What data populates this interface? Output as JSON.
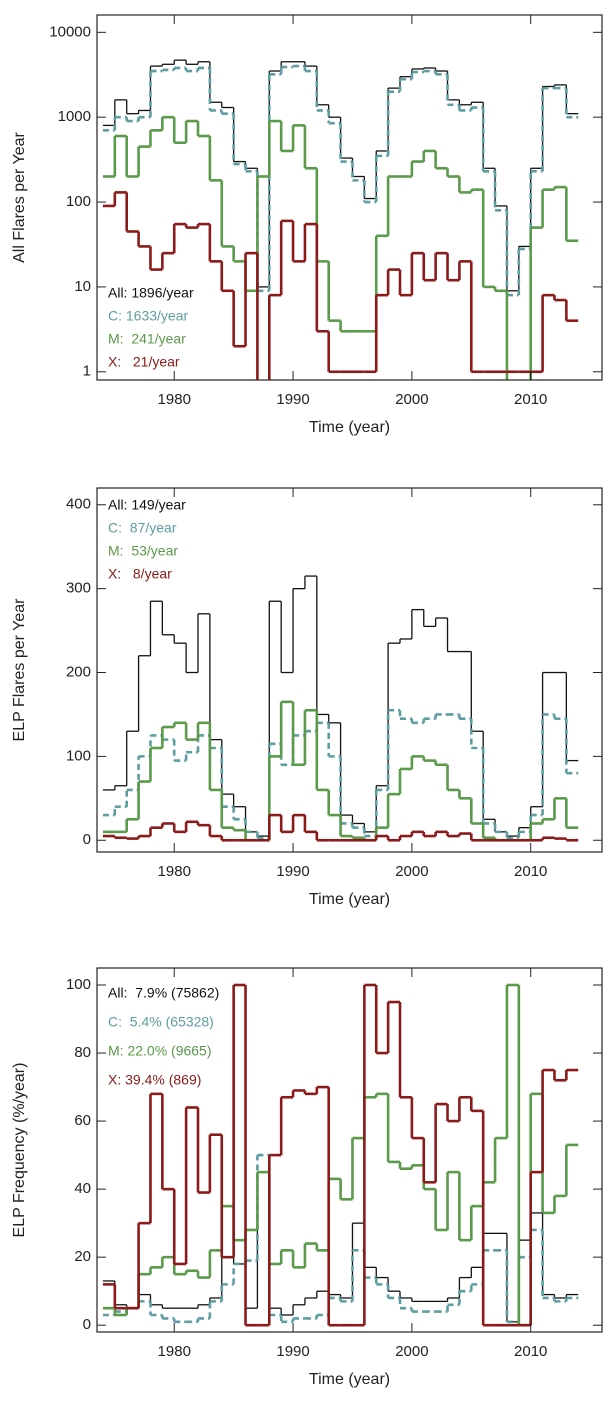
{
  "chart_data": [
    {
      "type": "line",
      "step": true,
      "ylabel": "All Flares per Year",
      "xlabel": "Time (year)",
      "yscale": "log",
      "x": [
        1974,
        1975,
        1976,
        1977,
        1978,
        1979,
        1980,
        1981,
        1982,
        1983,
        1984,
        1985,
        1986,
        1987,
        1988,
        1989,
        1990,
        1991,
        1992,
        1993,
        1994,
        1995,
        1996,
        1997,
        1998,
        1999,
        2000,
        2001,
        2002,
        2003,
        2004,
        2005,
        2006,
        2007,
        2008,
        2009,
        2010,
        2011,
        2012,
        2013
      ],
      "xlim": [
        1973.5,
        2016
      ],
      "xticks": [
        1980,
        1990,
        2000,
        2010
      ],
      "ylim": [
        0.8,
        16000
      ],
      "yticks": [
        1,
        10,
        100,
        1000,
        10000
      ],
      "series": [
        {
          "name": "All: 1896/year",
          "color": "#111111",
          "dash": false,
          "values": [
            800,
            1600,
            1100,
            1200,
            4000,
            4200,
            4700,
            4200,
            4500,
            1500,
            1300,
            300,
            250,
            10,
            3500,
            4500,
            4500,
            4000,
            1400,
            1000,
            330,
            200,
            110,
            400,
            2200,
            3000,
            3700,
            3800,
            3500,
            1600,
            1400,
            1500,
            250,
            90,
            9,
            30,
            250,
            2300,
            2400,
            1100
          ]
        },
        {
          "name": "C: 1633/year",
          "color": "#5f9ea0",
          "dash": true,
          "values": [
            700,
            1000,
            900,
            1000,
            3500,
            3600,
            3800,
            3500,
            3800,
            1200,
            1100,
            280,
            230,
            9,
            3200,
            3900,
            4000,
            3500,
            1200,
            850,
            300,
            180,
            100,
            350,
            2000,
            2800,
            3400,
            3500,
            3200,
            1400,
            1200,
            1300,
            230,
            80,
            8,
            28,
            230,
            2200,
            2200,
            1000
          ]
        },
        {
          "name": "M:  241/year",
          "color": "#5a9a4a",
          "dash": false,
          "values": [
            200,
            600,
            200,
            450,
            700,
            1000,
            500,
            900,
            600,
            180,
            30,
            20,
            9,
            200,
            900,
            400,
            800,
            250,
            20,
            4,
            3,
            3,
            3,
            40,
            200,
            200,
            300,
            400,
            250,
            200,
            130,
            140,
            10,
            9,
            0,
            0,
            50,
            140,
            150,
            35
          ]
        },
        {
          "name": "X:   21/year",
          "color": "#8b1a1a",
          "dash": false,
          "values": [
            90,
            130,
            45,
            30,
            16,
            25,
            55,
            50,
            55,
            20,
            9,
            2,
            25,
            0,
            8,
            60,
            20,
            55,
            3,
            1,
            1,
            1,
            1,
            8,
            16,
            8,
            25,
            12,
            25,
            12,
            20,
            1,
            1,
            1,
            1,
            1,
            1,
            8,
            7,
            4
          ]
        }
      ]
    },
    {
      "type": "line",
      "step": true,
      "ylabel": "ELP Flares per Year",
      "xlabel": "Time (year)",
      "yscale": "linear",
      "x": [
        1974,
        1975,
        1976,
        1977,
        1978,
        1979,
        1980,
        1981,
        1982,
        1983,
        1984,
        1985,
        1986,
        1987,
        1988,
        1989,
        1990,
        1991,
        1992,
        1993,
        1994,
        1995,
        1996,
        1997,
        1998,
        1999,
        2000,
        2001,
        2002,
        2003,
        2004,
        2005,
        2006,
        2007,
        2008,
        2009,
        2010,
        2011,
        2012,
        2013
      ],
      "xlim": [
        1973.5,
        2016
      ],
      "xticks": [
        1980,
        1990,
        2000,
        2010
      ],
      "ylim": [
        -14,
        420
      ],
      "yticks": [
        0,
        100,
        200,
        300,
        400
      ],
      "series": [
        {
          "name": "All: 149/year",
          "color": "#111111",
          "dash": false,
          "values": [
            60,
            65,
            130,
            220,
            285,
            245,
            235,
            200,
            270,
            120,
            55,
            40,
            10,
            5,
            285,
            200,
            300,
            315,
            150,
            140,
            30,
            20,
            10,
            65,
            235,
            240,
            275,
            255,
            265,
            225,
            225,
            130,
            25,
            10,
            5,
            15,
            40,
            200,
            200,
            95
          ]
        },
        {
          "name": "C:  87/year",
          "color": "#5f9ea0",
          "dash": true,
          "values": [
            30,
            40,
            60,
            100,
            125,
            120,
            95,
            105,
            125,
            110,
            40,
            25,
            10,
            3,
            115,
            90,
            125,
            130,
            140,
            100,
            20,
            15,
            5,
            60,
            155,
            145,
            140,
            145,
            150,
            150,
            145,
            110,
            20,
            10,
            3,
            10,
            30,
            150,
            145,
            80
          ]
        },
        {
          "name": "M:  53/year",
          "color": "#5a9a4a",
          "dash": false,
          "values": [
            10,
            10,
            25,
            70,
            110,
            135,
            140,
            120,
            140,
            60,
            15,
            12,
            0,
            0,
            100,
            165,
            90,
            155,
            60,
            30,
            5,
            3,
            0,
            15,
            55,
            85,
            100,
            95,
            90,
            60,
            50,
            20,
            3,
            0,
            0,
            0,
            20,
            25,
            50,
            15
          ]
        },
        {
          "name": "X:   8/year",
          "color": "#8b1a1a",
          "dash": false,
          "values": [
            5,
            3,
            2,
            5,
            15,
            20,
            10,
            22,
            18,
            5,
            0,
            0,
            0,
            0,
            30,
            10,
            30,
            10,
            0,
            0,
            0,
            0,
            0,
            5,
            0,
            5,
            10,
            5,
            10,
            5,
            8,
            0,
            0,
            0,
            0,
            0,
            0,
            3,
            2,
            0
          ]
        }
      ]
    },
    {
      "type": "line",
      "step": true,
      "ylabel": "ELP Frequency (%/year)",
      "xlabel": "Time (year)",
      "yscale": "linear",
      "x": [
        1974,
        1975,
        1976,
        1977,
        1978,
        1979,
        1980,
        1981,
        1982,
        1983,
        1984,
        1985,
        1986,
        1987,
        1988,
        1989,
        1990,
        1991,
        1992,
        1993,
        1994,
        1995,
        1996,
        1997,
        1998,
        1999,
        2000,
        2001,
        2002,
        2003,
        2004,
        2005,
        2006,
        2007,
        2008,
        2009,
        2010,
        2011,
        2012,
        2013
      ],
      "xlim": [
        1973.5,
        2016
      ],
      "xticks": [
        1980,
        1990,
        2000,
        2010
      ],
      "ylim": [
        -2,
        105
      ],
      "yticks": [
        0,
        20,
        40,
        60,
        80,
        100
      ],
      "series": [
        {
          "name": "All:  7.9% (75862)",
          "color": "#111111",
          "dash": false,
          "values": [
            13,
            6,
            5,
            9,
            6,
            5,
            5,
            5,
            6,
            8,
            20,
            18,
            5,
            45,
            5,
            3,
            6,
            8,
            10,
            9,
            8,
            30,
            17,
            14,
            10,
            8,
            7,
            7,
            7,
            8,
            14,
            17,
            27,
            27,
            1,
            25,
            33,
            9,
            8,
            9
          ]
        },
        {
          "name": "C:  5.4% (65328)",
          "color": "#5f9ea0",
          "dash": true,
          "values": [
            3,
            4,
            5,
            7,
            3,
            2,
            1,
            1,
            2,
            7,
            12,
            18,
            19,
            50,
            3,
            1,
            2,
            2,
            3,
            8,
            7,
            22,
            14,
            12,
            8,
            5,
            4,
            4,
            4,
            6,
            10,
            12,
            22,
            22,
            1,
            20,
            28,
            8,
            7,
            8
          ]
        },
        {
          "name": "M: 22.0% (9665)",
          "color": "#5a9a4a",
          "dash": false,
          "values": [
            5,
            3,
            5,
            15,
            17,
            20,
            15,
            16,
            14,
            22,
            35,
            25,
            28,
            45,
            18,
            22,
            17,
            24,
            22,
            43,
            37,
            55,
            67,
            68,
            48,
            46,
            47,
            40,
            28,
            45,
            25,
            35,
            42,
            55,
            100,
            0,
            68,
            33,
            38,
            53
          ]
        },
        {
          "name": "X: 39.4% (869)",
          "color": "#8b1a1a",
          "dash": false,
          "values": [
            12,
            5,
            5,
            30,
            68,
            40,
            18,
            64,
            39,
            56,
            20,
            100,
            0,
            0,
            50,
            67,
            69,
            68,
            70,
            0,
            0,
            0,
            100,
            80,
            95,
            67,
            55,
            42,
            65,
            60,
            67,
            63,
            0,
            0,
            0,
            0,
            45,
            75,
            72,
            75
          ]
        }
      ]
    }
  ]
}
